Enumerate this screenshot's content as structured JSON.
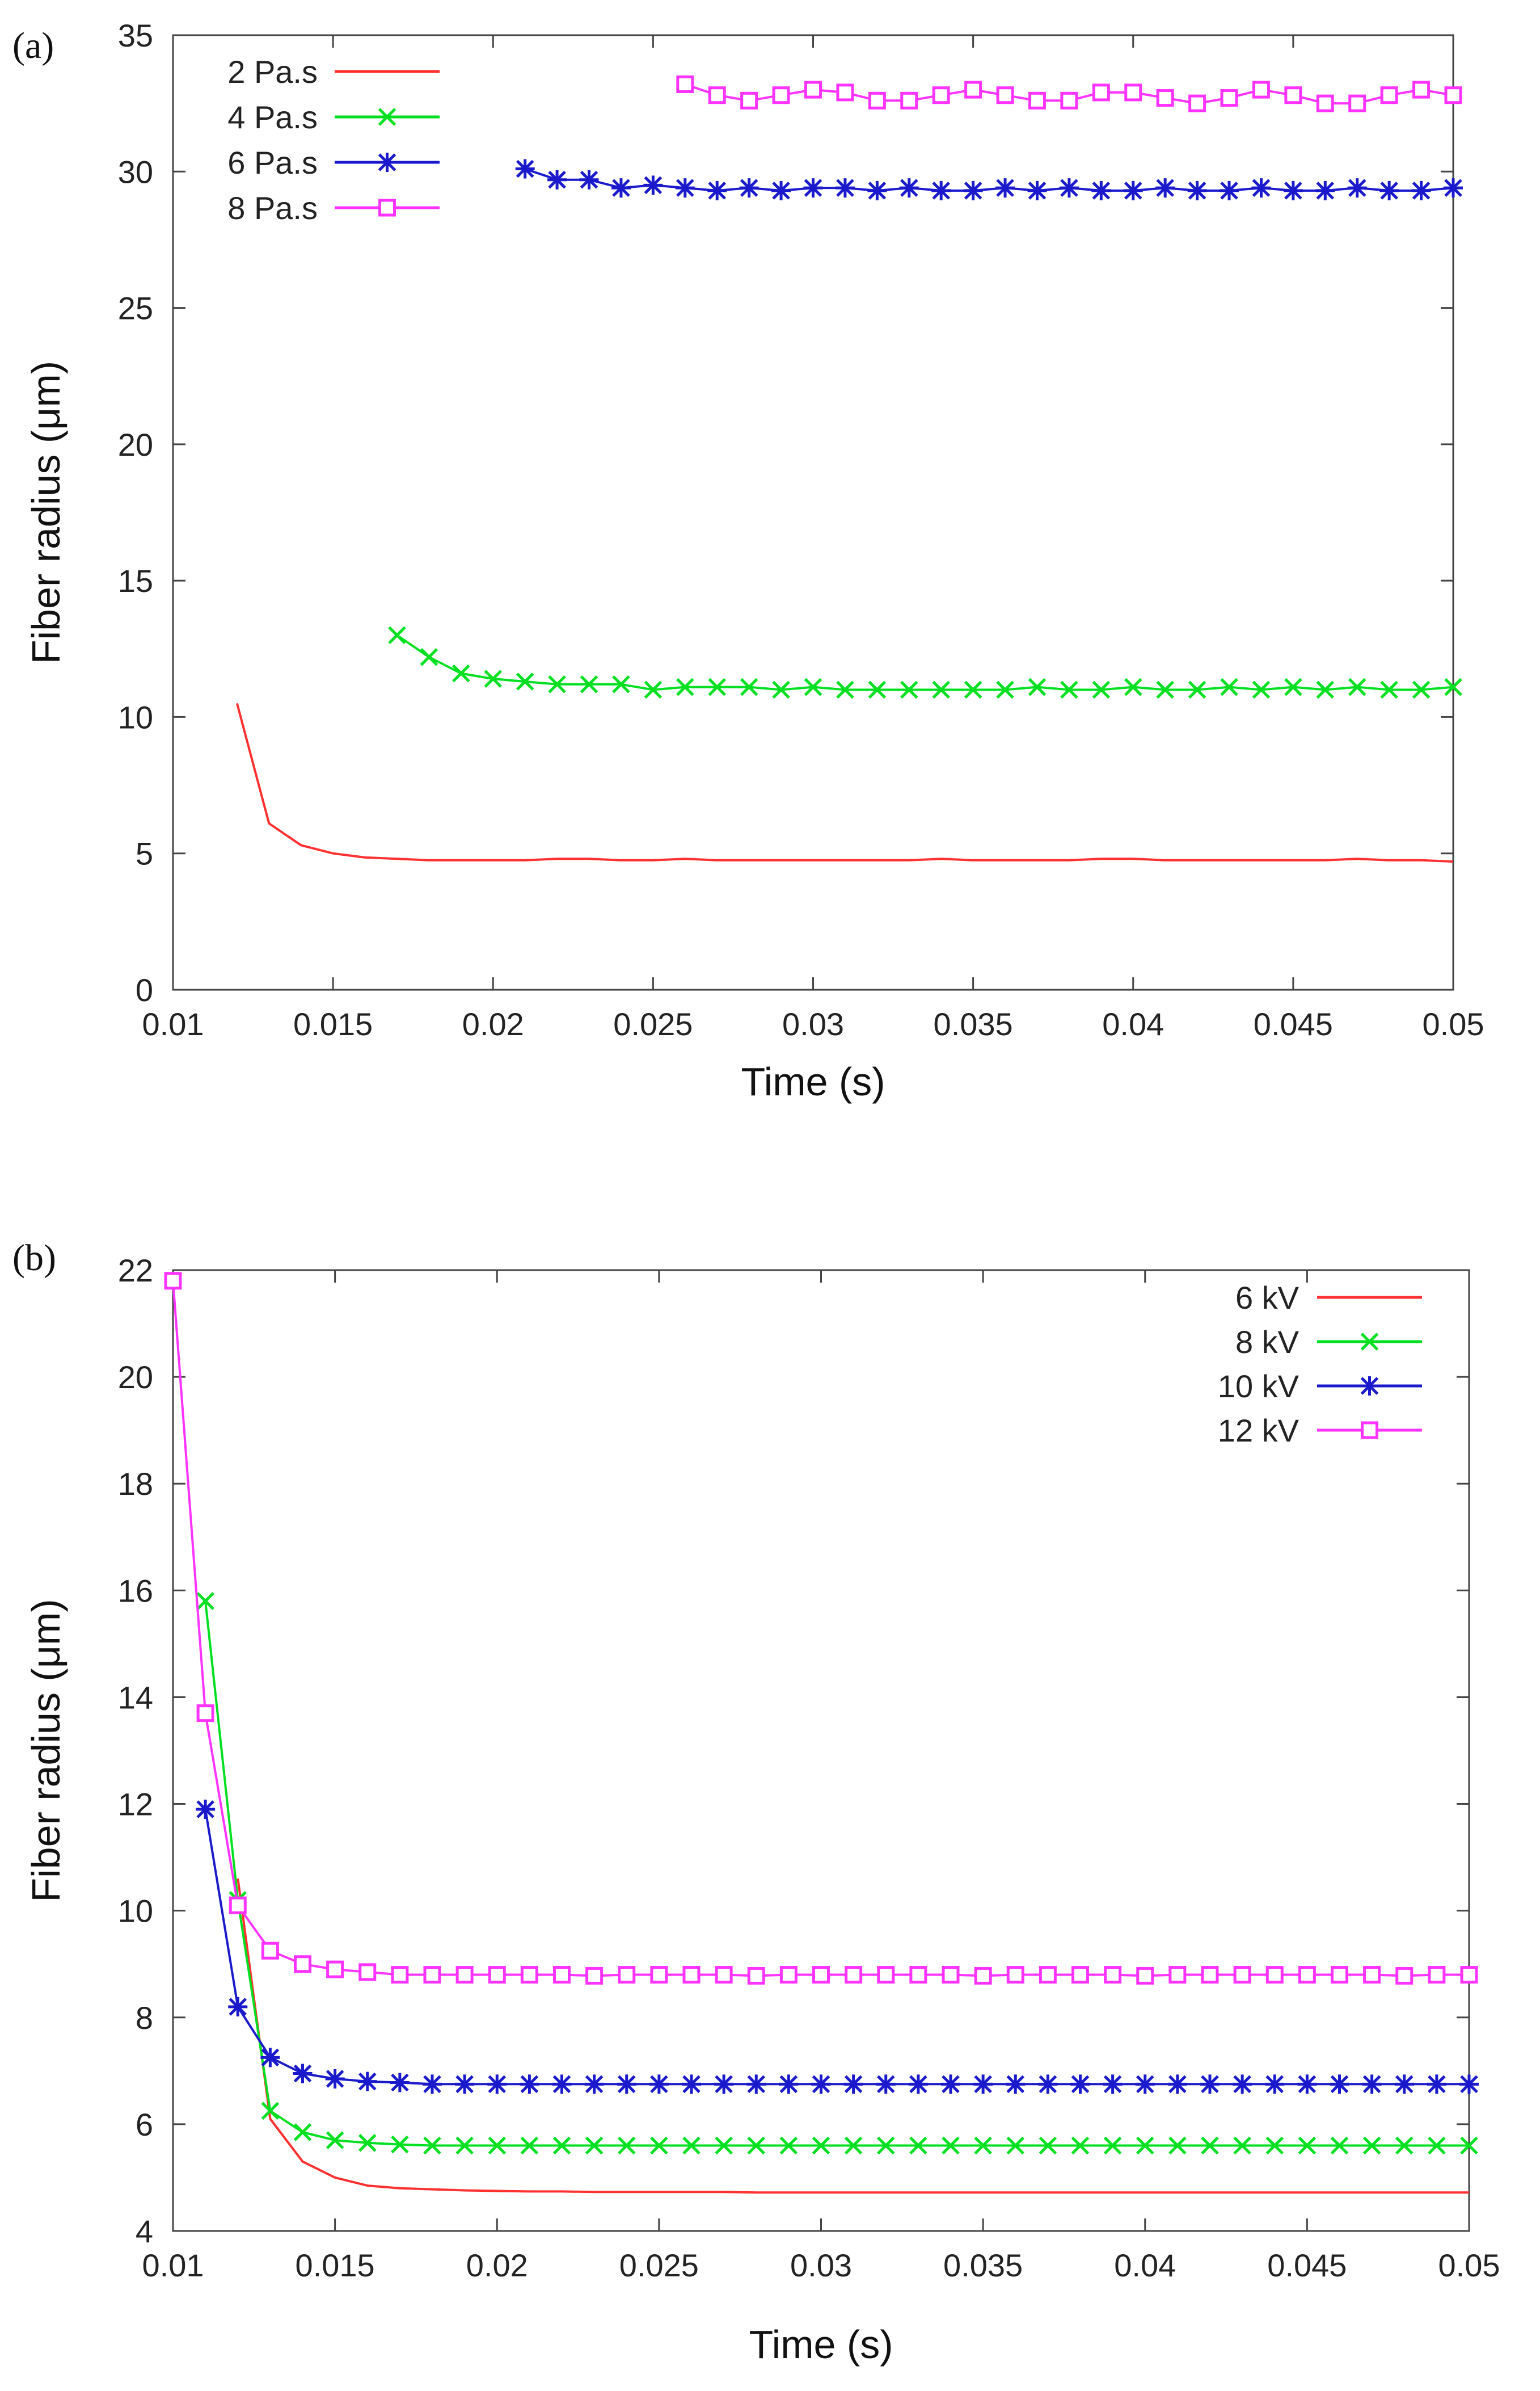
{
  "chart_data": [
    {
      "type": "line",
      "panel_label": "(a)",
      "xlabel": "Time (s)",
      "ylabel": "Fiber radius  (μm)",
      "xlim": [
        0.01,
        0.05
      ],
      "ylim": [
        0,
        35
      ],
      "xticks": [
        0.01,
        0.015,
        0.02,
        0.025,
        0.03,
        0.035,
        0.04,
        0.045,
        0.05
      ],
      "xtick_labels": [
        "0.01",
        "0.015",
        "0.02",
        "0.025",
        "0.03",
        "0.035",
        "0.04",
        "0.045",
        "0.05"
      ],
      "yticks": [
        0,
        5,
        10,
        15,
        20,
        25,
        30,
        35
      ],
      "ytick_labels": [
        "0",
        "5",
        "10",
        "15",
        "20",
        "25",
        "30",
        "35"
      ],
      "grid": false,
      "legend_position": "top-left",
      "series": [
        {
          "name": "2 Pa.s",
          "color": "#ff3030",
          "marker": "none",
          "x": [
            0.012,
            0.013,
            0.014,
            0.015,
            0.016,
            0.017,
            0.018,
            0.019,
            0.02,
            0.021,
            0.022,
            0.023,
            0.024,
            0.025,
            0.026,
            0.027,
            0.028,
            0.029,
            0.03,
            0.031,
            0.032,
            0.033,
            0.034,
            0.035,
            0.036,
            0.037,
            0.038,
            0.039,
            0.04,
            0.041,
            0.042,
            0.043,
            0.044,
            0.045,
            0.046,
            0.047,
            0.048,
            0.049,
            0.05
          ],
          "y": [
            10.5,
            6.1,
            5.3,
            5.0,
            4.85,
            4.8,
            4.75,
            4.75,
            4.75,
            4.75,
            4.8,
            4.8,
            4.75,
            4.75,
            4.8,
            4.75,
            4.75,
            4.75,
            4.75,
            4.75,
            4.75,
            4.75,
            4.8,
            4.75,
            4.75,
            4.75,
            4.75,
            4.8,
            4.8,
            4.75,
            4.75,
            4.75,
            4.75,
            4.75,
            4.75,
            4.8,
            4.75,
            4.75,
            4.7
          ]
        },
        {
          "name": "4 Pa.s",
          "color": "#00e020",
          "marker": "x",
          "x": [
            0.017,
            0.018,
            0.019,
            0.02,
            0.021,
            0.022,
            0.023,
            0.024,
            0.025,
            0.026,
            0.027,
            0.028,
            0.029,
            0.03,
            0.031,
            0.032,
            0.033,
            0.034,
            0.035,
            0.036,
            0.037,
            0.038,
            0.039,
            0.04,
            0.041,
            0.042,
            0.043,
            0.044,
            0.045,
            0.046,
            0.047,
            0.048,
            0.049,
            0.05
          ],
          "y": [
            13.0,
            12.2,
            11.6,
            11.4,
            11.3,
            11.2,
            11.2,
            11.2,
            11.0,
            11.1,
            11.1,
            11.1,
            11.0,
            11.1,
            11.0,
            11.0,
            11.0,
            11.0,
            11.0,
            11.0,
            11.1,
            11.0,
            11.0,
            11.1,
            11.0,
            11.0,
            11.1,
            11.0,
            11.1,
            11.0,
            11.1,
            11.0,
            11.0,
            11.1
          ]
        },
        {
          "name": "6 Pa.s",
          "color": "#1a1acc",
          "marker": "asterisk",
          "x": [
            0.021,
            0.022,
            0.023,
            0.024,
            0.025,
            0.026,
            0.027,
            0.028,
            0.029,
            0.03,
            0.031,
            0.032,
            0.033,
            0.034,
            0.035,
            0.036,
            0.037,
            0.038,
            0.039,
            0.04,
            0.041,
            0.042,
            0.043,
            0.044,
            0.045,
            0.046,
            0.047,
            0.048,
            0.049,
            0.05
          ],
          "y": [
            30.1,
            29.7,
            29.7,
            29.4,
            29.5,
            29.4,
            29.3,
            29.4,
            29.3,
            29.4,
            29.4,
            29.3,
            29.4,
            29.3,
            29.3,
            29.4,
            29.3,
            29.4,
            29.3,
            29.3,
            29.4,
            29.3,
            29.3,
            29.4,
            29.3,
            29.3,
            29.4,
            29.3,
            29.3,
            29.4
          ]
        },
        {
          "name": "8 Pa.s",
          "color": "#ff33ff",
          "marker": "square",
          "x": [
            0.026,
            0.027,
            0.028,
            0.029,
            0.03,
            0.031,
            0.032,
            0.033,
            0.034,
            0.035,
            0.036,
            0.037,
            0.038,
            0.039,
            0.04,
            0.041,
            0.042,
            0.043,
            0.044,
            0.045,
            0.046,
            0.047,
            0.048,
            0.049,
            0.05
          ],
          "y": [
            33.2,
            32.8,
            32.6,
            32.8,
            33.0,
            32.9,
            32.6,
            32.6,
            32.8,
            33.0,
            32.8,
            32.6,
            32.6,
            32.9,
            32.9,
            32.7,
            32.5,
            32.7,
            33.0,
            32.8,
            32.5,
            32.5,
            32.8,
            33.0,
            32.8
          ]
        }
      ]
    },
    {
      "type": "line",
      "panel_label": "(b)",
      "xlabel": "Time (s)",
      "ylabel": "Fiber radius  (μm)",
      "xlim": [
        0.01,
        0.05
      ],
      "ylim": [
        4,
        22
      ],
      "xticks": [
        0.01,
        0.015,
        0.02,
        0.025,
        0.03,
        0.035,
        0.04,
        0.045,
        0.05
      ],
      "xtick_labels": [
        "0.01",
        "0.015",
        "0.02",
        "0.025",
        "0.03",
        "0.035",
        "0.04",
        "0.045",
        "0.05"
      ],
      "yticks": [
        4,
        6,
        8,
        10,
        12,
        14,
        16,
        18,
        20,
        22
      ],
      "ytick_labels": [
        "4",
        "6",
        "8",
        "10",
        "12",
        "14",
        "16",
        "18",
        "20",
        "22"
      ],
      "grid": false,
      "legend_position": "top-right",
      "series": [
        {
          "name": "6 kV",
          "color": "#ff3030",
          "marker": "none",
          "x": [
            0.012,
            0.013,
            0.014,
            0.015,
            0.016,
            0.017,
            0.018,
            0.019,
            0.02,
            0.021,
            0.022,
            0.023,
            0.024,
            0.025,
            0.026,
            0.027,
            0.028,
            0.029,
            0.03,
            0.031,
            0.032,
            0.033,
            0.034,
            0.035,
            0.036,
            0.037,
            0.038,
            0.039,
            0.04,
            0.041,
            0.042,
            0.043,
            0.044,
            0.045,
            0.046,
            0.047,
            0.048,
            0.049,
            0.05
          ],
          "y": [
            10.6,
            6.1,
            5.3,
            5.0,
            4.85,
            4.8,
            4.78,
            4.76,
            4.75,
            4.74,
            4.74,
            4.73,
            4.73,
            4.73,
            4.73,
            4.73,
            4.72,
            4.72,
            4.72,
            4.72,
            4.72,
            4.72,
            4.72,
            4.72,
            4.72,
            4.72,
            4.72,
            4.72,
            4.72,
            4.72,
            4.72,
            4.72,
            4.72,
            4.72,
            4.72,
            4.72,
            4.72,
            4.72,
            4.72
          ]
        },
        {
          "name": "8 kV",
          "color": "#00e020",
          "marker": "x",
          "x": [
            0.011,
            0.012,
            0.013,
            0.014,
            0.015,
            0.016,
            0.017,
            0.018,
            0.019,
            0.02,
            0.021,
            0.022,
            0.023,
            0.024,
            0.025,
            0.026,
            0.027,
            0.028,
            0.029,
            0.03,
            0.031,
            0.032,
            0.033,
            0.034,
            0.035,
            0.036,
            0.037,
            0.038,
            0.039,
            0.04,
            0.041,
            0.042,
            0.043,
            0.044,
            0.045,
            0.046,
            0.047,
            0.048,
            0.049,
            0.05
          ],
          "y": [
            15.8,
            10.2,
            6.25,
            5.85,
            5.7,
            5.65,
            5.62,
            5.6,
            5.6,
            5.6,
            5.6,
            5.6,
            5.6,
            5.6,
            5.6,
            5.6,
            5.6,
            5.6,
            5.6,
            5.6,
            5.6,
            5.6,
            5.6,
            5.6,
            5.6,
            5.6,
            5.6,
            5.6,
            5.6,
            5.6,
            5.6,
            5.6,
            5.6,
            5.6,
            5.6,
            5.6,
            5.6,
            5.6,
            5.6,
            5.6
          ]
        },
        {
          "name": "10 kV",
          "color": "#1a1acc",
          "marker": "asterisk",
          "x": [
            0.011,
            0.012,
            0.013,
            0.014,
            0.015,
            0.016,
            0.017,
            0.018,
            0.019,
            0.02,
            0.021,
            0.022,
            0.023,
            0.024,
            0.025,
            0.026,
            0.027,
            0.028,
            0.029,
            0.03,
            0.031,
            0.032,
            0.033,
            0.034,
            0.035,
            0.036,
            0.037,
            0.038,
            0.039,
            0.04,
            0.041,
            0.042,
            0.043,
            0.044,
            0.045,
            0.046,
            0.047,
            0.048,
            0.049,
            0.05
          ],
          "y": [
            11.9,
            8.2,
            7.25,
            6.95,
            6.85,
            6.8,
            6.78,
            6.75,
            6.75,
            6.75,
            6.75,
            6.75,
            6.75,
            6.75,
            6.75,
            6.75,
            6.75,
            6.75,
            6.75,
            6.75,
            6.75,
            6.75,
            6.75,
            6.75,
            6.75,
            6.75,
            6.75,
            6.75,
            6.75,
            6.75,
            6.75,
            6.75,
            6.75,
            6.75,
            6.75,
            6.75,
            6.75,
            6.75,
            6.75,
            6.75
          ]
        },
        {
          "name": "12 kV",
          "color": "#ff33ff",
          "marker": "square",
          "x": [
            0.01,
            0.011,
            0.012,
            0.013,
            0.014,
            0.015,
            0.016,
            0.017,
            0.018,
            0.019,
            0.02,
            0.021,
            0.022,
            0.023,
            0.024,
            0.025,
            0.026,
            0.027,
            0.028,
            0.029,
            0.03,
            0.031,
            0.032,
            0.033,
            0.034,
            0.035,
            0.036,
            0.037,
            0.038,
            0.039,
            0.04,
            0.041,
            0.042,
            0.043,
            0.044,
            0.045,
            0.046,
            0.047,
            0.048,
            0.049,
            0.05
          ],
          "y": [
            21.8,
            13.7,
            10.1,
            9.25,
            9.0,
            8.9,
            8.85,
            8.8,
            8.8,
            8.8,
            8.8,
            8.8,
            8.8,
            8.78,
            8.8,
            8.8,
            8.8,
            8.8,
            8.78,
            8.8,
            8.8,
            8.8,
            8.8,
            8.8,
            8.8,
            8.78,
            8.8,
            8.8,
            8.8,
            8.8,
            8.78,
            8.8,
            8.8,
            8.8,
            8.8,
            8.8,
            8.8,
            8.8,
            8.78,
            8.8,
            8.8
          ]
        }
      ]
    }
  ]
}
